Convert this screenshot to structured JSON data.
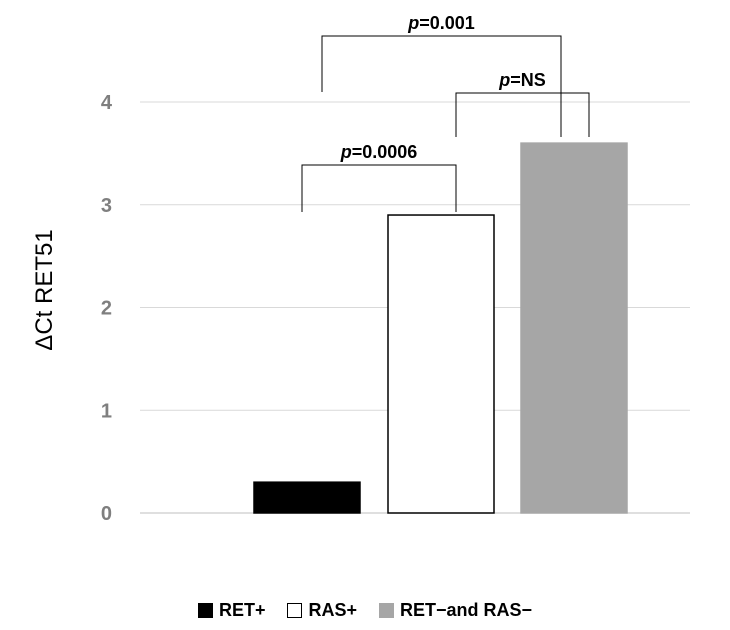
{
  "chart_data": {
    "type": "bar",
    "categories": [
      "RET+",
      "RAS+",
      "RET−and RAS−"
    ],
    "values": [
      0.3,
      2.9,
      3.6
    ],
    "colors": [
      "#000000",
      "#ffffff",
      "#a6a6a6"
    ],
    "ylabel": "ΔCt RET51",
    "xlabel": "",
    "ylim": [
      0,
      4
    ],
    "yticks": [
      "0",
      "1",
      "2",
      "3",
      "4"
    ],
    "grid": true,
    "legend_position": "bottom",
    "comparisons": [
      {
        "from": 0,
        "to": 1,
        "label_p": "p",
        "label_value": "=0.0006"
      },
      {
        "from": 1,
        "to": 2,
        "label_p": "p",
        "label_value": "=NS"
      },
      {
        "from": 0,
        "to": 2,
        "label_p": "p",
        "label_value": "=0.001"
      }
    ]
  }
}
